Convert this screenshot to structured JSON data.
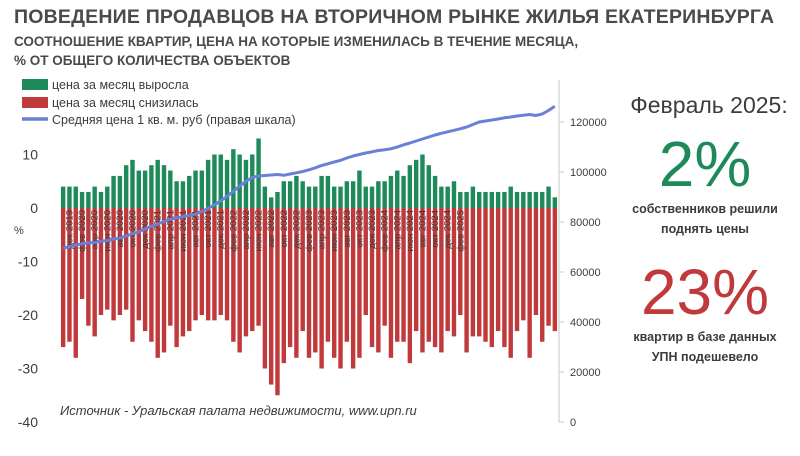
{
  "title": "ПОВЕДЕНИЕ ПРОДАВЦОВ НА ВТОРИЧНОМ РЫНКЕ ЖИЛЬЯ ЕКАТЕРИНБУРГА",
  "subtitle_line1": "СООТНОШЕНИЕ КВАРТИР, ЦЕНА НА КОТОРЫЕ ИЗМЕНИЛАСЬ В ТЕЧЕНИЕ МЕСЯЦА,",
  "subtitle_line2": "% ОТ ОБЩЕГО КОЛИЧЕСТВА ОБЪЕКТОВ",
  "side_panel": {
    "period": "Февраль 2025:",
    "raised_value": "2%",
    "raised_caption_line1": "собственников решили",
    "raised_caption_line2": "поднять цены",
    "lowered_value": "23%",
    "lowered_caption_line1": "квартир в базе данных",
    "lowered_caption_line2": "УПН подешевело"
  },
  "colors": {
    "increase": "#1e8a5a",
    "decrease": "#c0393b",
    "avg_price_line": "#6b7fd6",
    "text": "#3c3c3c"
  },
  "chart_data": {
    "type": "bar",
    "legend_placement": "top-left",
    "grid": false,
    "source": "Источник - Уральская палата недвижимости, www.upn.ru",
    "ylabel": "%",
    "ylim": [
      -40,
      15
    ],
    "y_ticks": [
      "-40",
      "-30",
      "-20",
      "-10",
      "0",
      "10"
    ],
    "y2lim": [
      0,
      130000
    ],
    "y2_ticks": [
      "0",
      "20000",
      "40000",
      "60000",
      "80000",
      "100000",
      "120000"
    ],
    "x_tick_labels": [
      "дек 2019",
      "фев 2020",
      "апр 2020",
      "июн 2020",
      "авг 2020",
      "окт 2020",
      "дек 2020",
      "фев 2021",
      "апр 2021",
      "июн 2021",
      "авг 2021",
      "окт 2021",
      "дек 2021",
      "фев 2022",
      "апр 2022",
      "июн 2022",
      "авг 2022",
      "окт 2022",
      "дек 2022",
      "фев 2023",
      "апр 2023",
      "июн 2023",
      "авг 2023",
      "окт 2023",
      "дек 2023",
      "фев 2024",
      "апр 2024",
      "июн 2024",
      "авг 2024",
      "окт 2024",
      "дек 2024",
      "фев 2025"
    ],
    "series": [
      {
        "name": "цена за месяц выросла",
        "values": [
          4,
          4,
          4,
          3,
          3,
          4,
          3,
          4,
          6,
          6,
          8,
          9,
          7,
          7,
          8,
          9,
          8,
          7,
          5,
          5,
          6,
          7,
          7,
          9,
          10,
          10,
          9,
          11,
          10,
          9,
          10,
          13,
          4,
          2,
          3,
          5,
          5,
          6,
          5,
          4,
          4,
          6,
          6,
          4,
          4,
          5,
          5,
          7,
          4,
          4,
          5,
          5,
          6,
          7,
          6,
          8,
          9,
          10,
          8,
          6,
          4,
          4,
          5,
          3,
          3,
          4,
          3,
          3,
          3,
          3,
          3,
          4,
          3,
          3,
          3,
          3,
          3,
          4,
          2
        ]
      },
      {
        "name": "цена за месяц снизилась",
        "values": [
          -26,
          -25,
          -28,
          -17,
          -22,
          -24,
          -20,
          -19,
          -21,
          -20,
          -19,
          -25,
          -21,
          -23,
          -25,
          -28,
          -27,
          -22,
          -26,
          -24,
          -23,
          -21,
          -20,
          -21,
          -21,
          -20,
          -21,
          -25,
          -27,
          -24,
          -23,
          -22,
          -30,
          -33,
          -35,
          -29,
          -26,
          -28,
          -23,
          -28,
          -27,
          -30,
          -25,
          -28,
          -30,
          -25,
          -30,
          -28,
          -20,
          -26,
          -27,
          -22,
          -28,
          -25,
          -25,
          -29,
          -23,
          -27,
          -25,
          -26,
          -27,
          -23,
          -24,
          -20,
          -27,
          -24,
          -24,
          -25,
          -26,
          -23,
          -26,
          -28,
          -23,
          -21,
          -28,
          -20,
          -25,
          -22,
          -23
        ]
      },
      {
        "name": "Средняя цена 1 кв. м. руб (правая шкала)",
        "axis": "right",
        "values": [
          69500,
          70200,
          70800,
          71300,
          71600,
          71900,
          72300,
          72600,
          73200,
          73700,
          74400,
          75300,
          76100,
          77200,
          78300,
          79200,
          80200,
          81100,
          81700,
          82100,
          82600,
          83200,
          84200,
          85400,
          86900,
          88500,
          90300,
          92300,
          94400,
          96300,
          97800,
          98400,
          98600,
          98800,
          99000,
          98700,
          99200,
          99700,
          100200,
          100900,
          101700,
          102600,
          103300,
          104000,
          104700,
          105600,
          106400,
          107000,
          107600,
          108100,
          108600,
          108900,
          109300,
          110000,
          110900,
          111600,
          112400,
          113200,
          114000,
          114800,
          115500,
          116100,
          116700,
          117300,
          118000,
          119000,
          120000,
          120400,
          120800,
          121200,
          121700,
          122000,
          122400,
          122700,
          123000,
          122600,
          123200,
          124600,
          126300
        ]
      }
    ]
  }
}
